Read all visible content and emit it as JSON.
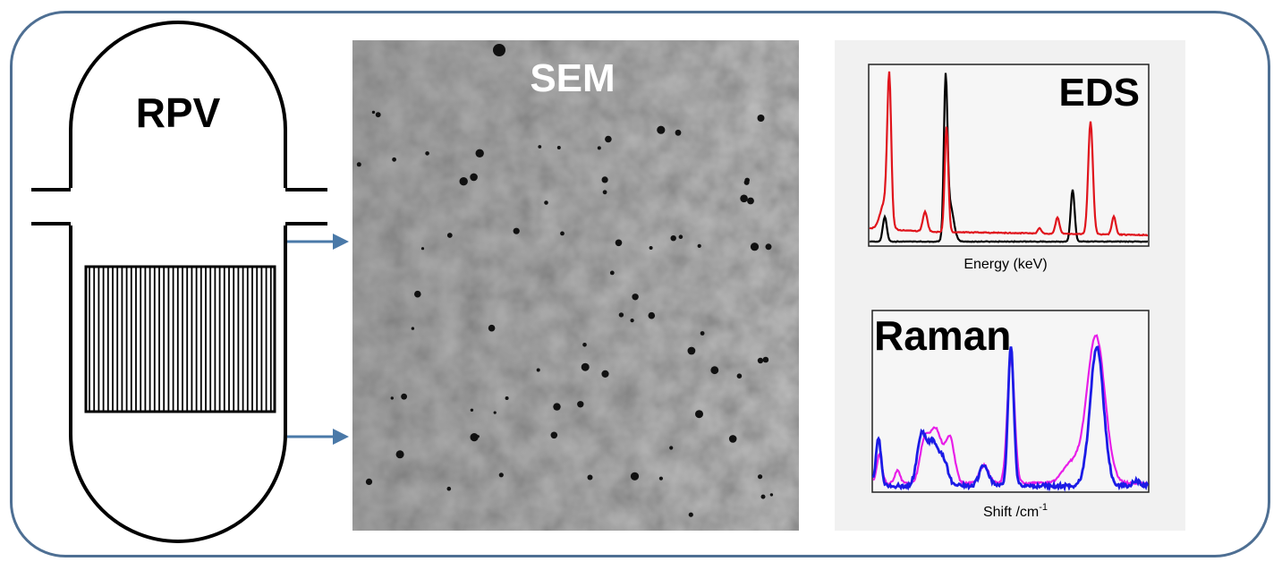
{
  "labels": {
    "rpv": "RPV",
    "sem": "SEM",
    "eds": "EDS",
    "raman": "Raman"
  },
  "axes": {
    "eds_xlabel": "Energy (keV)",
    "raman_xlabel_base": "Shift /cm",
    "raman_xlabel_sup": "-1"
  },
  "colors": {
    "frame": "#4e6f93",
    "arrow": "#4a79a8",
    "eds_red": "#e0141c",
    "eds_black": "#000000",
    "raman_blue": "#1b1be6",
    "raman_magenta": "#e81ee8",
    "sem_gray": "#8a8a8a"
  }
}
